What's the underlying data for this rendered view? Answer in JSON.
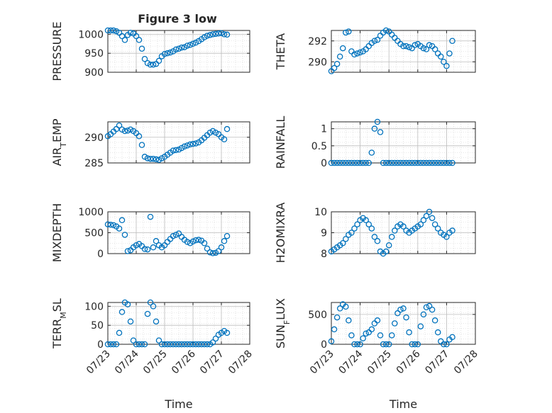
{
  "figure": {
    "title": "Figure 3 low",
    "marker_color": "#0072BD",
    "axis_color": "#262626",
    "grid_color": "#d0d0d0"
  },
  "chart_data": [
    {
      "type": "scatter",
      "title": "Figure 3 low",
      "ylabel": "PRESSURE",
      "xlabel": "",
      "xlim": [
        0,
        5
      ],
      "ylim": [
        900,
        1010
      ],
      "yticks": [
        900,
        950,
        1000
      ],
      "grid": true,
      "series": [
        {
          "x": [
            0.0,
            0.1,
            0.2,
            0.3,
            0.4,
            0.5,
            0.6,
            0.7,
            0.8,
            0.9,
            1.0,
            1.1,
            1.2,
            1.3,
            1.4,
            1.5,
            1.6,
            1.7,
            1.8,
            1.9,
            2.0,
            2.1,
            2.2,
            2.3,
            2.4,
            2.5,
            2.6,
            2.7,
            2.8,
            2.9,
            3.0,
            3.1,
            3.2,
            3.3,
            3.4,
            3.5,
            3.6,
            3.7,
            3.8,
            3.9,
            4.0,
            4.1,
            4.2
          ],
          "y": [
            1010,
            1010,
            1010,
            1008,
            1004,
            995,
            985,
            998,
            1004,
            1002,
            995,
            985,
            962,
            935,
            924,
            920,
            920,
            922,
            930,
            942,
            948,
            950,
            952,
            955,
            960,
            962,
            965,
            966,
            970,
            972,
            975,
            978,
            982,
            987,
            992,
            996,
            998,
            1000,
            1001,
            1002,
            1003,
            1000,
            999
          ]
        }
      ]
    },
    {
      "type": "scatter",
      "ylabel": "THETA",
      "xlabel": "",
      "xlim": [
        0,
        5
      ],
      "ylim": [
        289,
        293
      ],
      "yticks": [
        290,
        292
      ],
      "grid": true,
      "series": [
        {
          "x": [
            0.0,
            0.1,
            0.2,
            0.3,
            0.4,
            0.5,
            0.6,
            0.7,
            0.8,
            0.9,
            1.0,
            1.1,
            1.2,
            1.3,
            1.4,
            1.5,
            1.6,
            1.7,
            1.8,
            1.9,
            2.0,
            2.1,
            2.2,
            2.3,
            2.4,
            2.5,
            2.6,
            2.7,
            2.8,
            2.9,
            3.0,
            3.1,
            3.2,
            3.3,
            3.4,
            3.5,
            3.6,
            3.7,
            3.8,
            3.9,
            4.0,
            4.1,
            4.2
          ],
          "y": [
            289.1,
            289.4,
            289.8,
            290.5,
            291.3,
            292.8,
            292.9,
            291.0,
            290.7,
            290.8,
            290.9,
            291.0,
            291.2,
            291.5,
            291.8,
            292.0,
            292.1,
            292.5,
            292.8,
            293.0,
            292.9,
            292.6,
            292.3,
            292.0,
            291.7,
            291.5,
            291.5,
            291.4,
            291.3,
            291.6,
            291.7,
            291.5,
            291.3,
            291.2,
            291.6,
            291.5,
            291.2,
            290.8,
            290.5,
            290.0,
            289.6,
            290.8,
            292.0
          ]
        }
      ]
    },
    {
      "type": "scatter",
      "ylabel": "AIR_TEMP",
      "xlabel": "",
      "xlim": [
        0,
        5
      ],
      "ylim": [
        285,
        293
      ],
      "yticks": [
        285,
        290
      ],
      "grid": true,
      "series": [
        {
          "x": [
            0.0,
            0.1,
            0.2,
            0.3,
            0.4,
            0.5,
            0.6,
            0.7,
            0.8,
            0.9,
            1.0,
            1.1,
            1.2,
            1.3,
            1.4,
            1.5,
            1.6,
            1.7,
            1.8,
            1.9,
            2.0,
            2.1,
            2.2,
            2.3,
            2.4,
            2.5,
            2.6,
            2.7,
            2.8,
            2.9,
            3.0,
            3.1,
            3.2,
            3.3,
            3.4,
            3.5,
            3.6,
            3.7,
            3.8,
            3.9,
            4.0,
            4.1,
            4.2
          ],
          "y": [
            290.2,
            290.6,
            291.1,
            291.6,
            292.3,
            291.5,
            291.2,
            291.3,
            291.5,
            291.2,
            290.8,
            290.2,
            288.5,
            286.2,
            285.9,
            285.8,
            285.8,
            285.7,
            285.6,
            285.9,
            286.2,
            286.6,
            287.0,
            287.4,
            287.5,
            287.6,
            287.9,
            288.2,
            288.4,
            288.6,
            288.7,
            288.8,
            289.0,
            289.4,
            289.9,
            290.4,
            290.9,
            291.2,
            290.9,
            290.6,
            290.0,
            289.6,
            291.6
          ]
        }
      ]
    },
    {
      "type": "scatter",
      "ylabel": "RAINFALL",
      "xlabel": "",
      "xlim": [
        0,
        5
      ],
      "ylim": [
        0,
        1.2
      ],
      "yticks": [
        0,
        0.5,
        1
      ],
      "grid": true,
      "series": [
        {
          "x": [
            0.0,
            0.1,
            0.2,
            0.3,
            0.4,
            0.5,
            0.6,
            0.7,
            0.8,
            0.9,
            1.0,
            1.1,
            1.2,
            1.3,
            1.4,
            1.5,
            1.6,
            1.7,
            1.8,
            1.9,
            2.0,
            2.1,
            2.2,
            2.3,
            2.4,
            2.5,
            2.6,
            2.7,
            2.8,
            2.9,
            3.0,
            3.1,
            3.2,
            3.3,
            3.4,
            3.5,
            3.6,
            3.7,
            3.8,
            3.9,
            4.0,
            4.1,
            4.2
          ],
          "y": [
            0,
            0,
            0,
            0,
            0,
            0,
            0,
            0,
            0,
            0,
            0,
            0,
            0,
            0,
            0.3,
            1.0,
            1.2,
            0.9,
            0,
            0,
            0,
            0,
            0,
            0,
            0,
            0,
            0,
            0,
            0,
            0,
            0,
            0,
            0,
            0,
            0,
            0,
            0,
            0,
            0,
            0,
            0,
            0,
            0
          ]
        }
      ]
    },
    {
      "type": "scatter",
      "ylabel": "MIXDEPTH",
      "xlabel": "",
      "xlim": [
        0,
        5
      ],
      "ylim": [
        0,
        1000
      ],
      "yticks": [
        0,
        500,
        1000
      ],
      "grid": true,
      "series": [
        {
          "x": [
            0.0,
            0.1,
            0.2,
            0.3,
            0.4,
            0.5,
            0.6,
            0.7,
            0.8,
            0.9,
            1.0,
            1.1,
            1.2,
            1.3,
            1.4,
            1.5,
            1.6,
            1.7,
            1.8,
            1.9,
            2.0,
            2.1,
            2.2,
            2.3,
            2.4,
            2.5,
            2.6,
            2.7,
            2.8,
            2.9,
            3.0,
            3.1,
            3.2,
            3.3,
            3.4,
            3.5,
            3.6,
            3.7,
            3.8,
            3.9,
            4.0,
            4.1,
            4.2
          ],
          "y": [
            700,
            690,
            680,
            650,
            600,
            800,
            450,
            60,
            80,
            150,
            200,
            230,
            180,
            110,
            100,
            880,
            150,
            300,
            200,
            150,
            200,
            280,
            350,
            420,
            450,
            480,
            400,
            330,
            280,
            250,
            290,
            320,
            330,
            310,
            250,
            120,
            30,
            10,
            20,
            60,
            150,
            300,
            420
          ]
        }
      ]
    },
    {
      "type": "scatter",
      "ylabel": "H2OMIXRA",
      "xlabel": "",
      "xlim": [
        0,
        5
      ],
      "ylim": [
        8,
        10
      ],
      "yticks": [
        8,
        9,
        10
      ],
      "grid": true,
      "series": [
        {
          "x": [
            0.0,
            0.1,
            0.2,
            0.3,
            0.4,
            0.5,
            0.6,
            0.7,
            0.8,
            0.9,
            1.0,
            1.1,
            1.2,
            1.3,
            1.4,
            1.5,
            1.6,
            1.7,
            1.8,
            1.9,
            2.0,
            2.1,
            2.2,
            2.3,
            2.4,
            2.5,
            2.6,
            2.7,
            2.8,
            2.9,
            3.0,
            3.1,
            3.2,
            3.3,
            3.4,
            3.5,
            3.6,
            3.7,
            3.8,
            3.9,
            4.0,
            4.1,
            4.2
          ],
          "y": [
            8.1,
            8.2,
            8.3,
            8.4,
            8.5,
            8.7,
            8.9,
            9.0,
            9.2,
            9.4,
            9.6,
            9.7,
            9.6,
            9.4,
            9.2,
            8.8,
            8.6,
            8.1,
            8.0,
            8.1,
            8.4,
            8.8,
            9.1,
            9.3,
            9.4,
            9.3,
            9.1,
            9.0,
            9.1,
            9.2,
            9.3,
            9.4,
            9.6,
            9.8,
            10.0,
            9.7,
            9.4,
            9.2,
            9.0,
            8.9,
            8.8,
            9.0,
            9.1
          ]
        }
      ]
    },
    {
      "type": "scatter",
      "ylabel": "TERR_MSL",
      "xlabel": "Time",
      "xlim": [
        0,
        5
      ],
      "ylim": [
        0,
        110
      ],
      "yticks": [
        0,
        50,
        100
      ],
      "xticks": [
        "07/23",
        "07/24",
        "07/25",
        "07/26",
        "07/27",
        "07/28"
      ],
      "grid": true,
      "series": [
        {
          "x": [
            0.0,
            0.1,
            0.2,
            0.3,
            0.4,
            0.5,
            0.6,
            0.7,
            0.8,
            0.9,
            1.0,
            1.1,
            1.2,
            1.3,
            1.4,
            1.5,
            1.6,
            1.7,
            1.8,
            1.9,
            2.0,
            2.1,
            2.2,
            2.3,
            2.4,
            2.5,
            2.6,
            2.7,
            2.8,
            2.9,
            3.0,
            3.1,
            3.2,
            3.3,
            3.4,
            3.5,
            3.6,
            3.7,
            3.8,
            3.9,
            4.0,
            4.1,
            4.2
          ],
          "y": [
            0,
            0,
            0,
            0,
            30,
            85,
            110,
            105,
            60,
            10,
            0,
            0,
            0,
            0,
            80,
            110,
            100,
            60,
            10,
            0,
            0,
            0,
            0,
            0,
            0,
            0,
            0,
            0,
            0,
            0,
            0,
            0,
            0,
            0,
            0,
            0,
            0,
            5,
            15,
            25,
            30,
            35,
            30
          ]
        }
      ]
    },
    {
      "type": "scatter",
      "ylabel": "SUN_FLUX",
      "xlabel": "Time",
      "xlim": [
        0,
        5
      ],
      "ylim": [
        0,
        700
      ],
      "yticks": [
        0,
        500
      ],
      "xticks": [
        "07/23",
        "07/24",
        "07/25",
        "07/26",
        "07/27",
        "07/28"
      ],
      "grid": true,
      "series": [
        {
          "x": [
            0.0,
            0.1,
            0.2,
            0.3,
            0.4,
            0.5,
            0.6,
            0.7,
            0.8,
            0.9,
            1.0,
            1.1,
            1.2,
            1.3,
            1.4,
            1.5,
            1.6,
            1.7,
            1.8,
            1.9,
            2.0,
            2.1,
            2.2,
            2.3,
            2.4,
            2.5,
            2.6,
            2.7,
            2.8,
            2.9,
            3.0,
            3.1,
            3.2,
            3.3,
            3.4,
            3.5,
            3.6,
            3.7,
            3.8,
            3.9,
            4.0,
            4.1,
            4.2
          ],
          "y": [
            50,
            250,
            450,
            600,
            670,
            630,
            400,
            150,
            0,
            0,
            0,
            100,
            180,
            200,
            250,
            350,
            400,
            150,
            0,
            0,
            0,
            150,
            350,
            520,
            580,
            600,
            450,
            200,
            0,
            0,
            0,
            300,
            500,
            620,
            640,
            580,
            400,
            200,
            50,
            0,
            0,
            80,
            120
          ]
        }
      ]
    }
  ]
}
